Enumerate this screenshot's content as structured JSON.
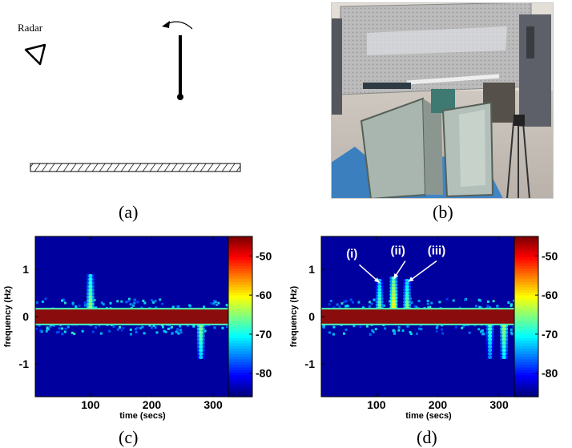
{
  "panel_a": {
    "label": "(a)",
    "radar_label": "Radar"
  },
  "panel_b": {
    "label": "(b)"
  },
  "panel_c": {
    "label": "(c)"
  },
  "panel_d": {
    "label": "(d)",
    "annotations": [
      "(i)",
      "(ii)",
      "(iii)"
    ]
  },
  "chart_data": [
    {
      "type": "heatmap",
      "panel": "(c)",
      "xlabel": "time (secs)",
      "ylabel": "frequency (Hz)",
      "xlim": [
        10,
        360
      ],
      "ylim": [
        -1.7,
        1.7
      ],
      "x_ticks": [
        100,
        200,
        300
      ],
      "y_ticks": [
        1,
        0,
        -1
      ],
      "colorbar": {
        "range": [
          -86,
          -45
        ],
        "ticks": [
          -50,
          -60,
          -70,
          -80
        ]
      },
      "features": [
        {
          "kind": "dc_band",
          "y_range": [
            -0.15,
            0.15
          ],
          "level": -45
        },
        {
          "kind": "streak",
          "x": 100,
          "y_range": [
            0.15,
            0.9
          ],
          "peak": -62
        },
        {
          "kind": "streak",
          "x": 280,
          "y_range": [
            -0.9,
            -0.15
          ],
          "peak": -63
        }
      ]
    },
    {
      "type": "heatmap",
      "panel": "(d)",
      "xlabel": "time (secs)",
      "ylabel": "frequency (Hz)",
      "xlim": [
        10,
        360
      ],
      "ylim": [
        -1.7,
        1.7
      ],
      "x_ticks": [
        100,
        200,
        300
      ],
      "y_ticks": [
        1,
        0,
        -1
      ],
      "colorbar": {
        "range": [
          -86,
          -45
        ],
        "ticks": [
          -50,
          -60,
          -70,
          -80
        ]
      },
      "features": [
        {
          "kind": "dc_band",
          "y_range": [
            -0.15,
            0.15
          ],
          "level": -45
        },
        {
          "kind": "streak",
          "x": 105,
          "y_range": [
            0.15,
            0.8
          ],
          "peak": -64
        },
        {
          "kind": "streak",
          "x": 128,
          "y_range": [
            0.15,
            0.85
          ],
          "peak": -58
        },
        {
          "kind": "streak",
          "x": 150,
          "y_range": [
            0.15,
            0.8
          ],
          "peak": -63
        },
        {
          "kind": "streak",
          "x": 285,
          "y_range": [
            -0.9,
            -0.15
          ],
          "peak": -66
        },
        {
          "kind": "streak",
          "x": 308,
          "y_range": [
            -0.9,
            -0.15
          ],
          "peak": -62
        },
        {
          "kind": "streak",
          "x": 335,
          "y_range": [
            -0.9,
            -0.15
          ],
          "peak": -62
        }
      ]
    }
  ],
  "colors": {
    "background_low": "#00008f",
    "band": "#8b0c0c",
    "outline": "#000000"
  }
}
